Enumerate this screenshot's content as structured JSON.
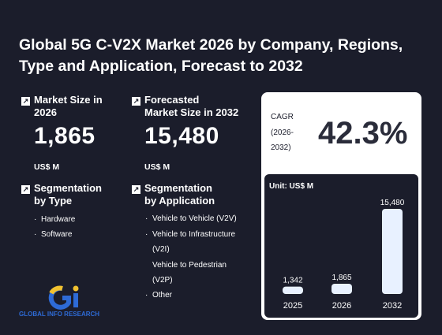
{
  "title": "Global 5G C-V2X Market 2026 by Company, Regions, Type and Application, Forecast to 2032",
  "market_size": {
    "label_line1": "Market Size in",
    "label_line2": "2026",
    "value": "1,865",
    "unit": "US$ M"
  },
  "forecast": {
    "label_line1": "Forecasted",
    "label_line2": "Market Size in 2032",
    "value": "15,480",
    "unit": "US$ M"
  },
  "seg_type": {
    "label_line1": "Segmentation",
    "label_line2": "by Type",
    "items": [
      "Hardware",
      "Software"
    ]
  },
  "seg_app": {
    "label_line1": "Segmentation",
    "label_line2": "by Application",
    "items": [
      "Vehicle to Vehicle (V2V)",
      "Vehicle to Infrastructure",
      "(V2I)",
      "Vehicle to Pedestrian",
      "(V2P)",
      "Other"
    ]
  },
  "cagr": {
    "label_line1": "CAGR",
    "label_line2": "(2026-",
    "label_line3": "2032)",
    "value": "42.3%"
  },
  "chart_data": {
    "type": "bar",
    "unit_label": "Unit: US$ M",
    "categories": [
      "2025",
      "2026",
      "2032"
    ],
    "values": [
      1342,
      1865,
      15480
    ],
    "value_labels": [
      "1,342",
      "1,865",
      "15,480"
    ],
    "ylim": [
      0,
      15480
    ]
  },
  "colors": {
    "background": "#1b1d2b",
    "bar": "#e8f1ff",
    "logo_blue": "#2e6bd6",
    "logo_yellow": "#f2c230"
  },
  "logo": {
    "text": "GLOBAL INFO RESEARCH"
  },
  "icons": {
    "stat": "arrow-up-right-icon"
  }
}
